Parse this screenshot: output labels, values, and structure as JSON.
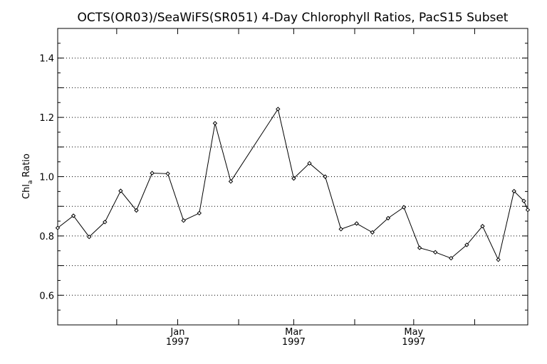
{
  "chart_data": {
    "type": "line",
    "title": "OCTS(OR03)/SeaWiFS(SR051) 4-Day Chlorophyll Ratios, PacS15 Subset",
    "ylabel": "Chl",
    "ylabel_subscript": "a",
    "ylabel_suffix": " Ratio",
    "ylim": [
      0.5,
      1.5
    ],
    "yticks": [
      0.6,
      0.8,
      1.0,
      1.2,
      1.4
    ],
    "ytick_labels": [
      "0.6",
      "0.8",
      "1.0",
      "1.2",
      "1.4"
    ],
    "grid": "horizontal dotted at every 0.1",
    "xlim": [
      "1996-11-01",
      "1997-06-28"
    ],
    "xticks": [
      {
        "date": "1996-12-01",
        "label": "",
        "year": ""
      },
      {
        "date": "1997-01-01",
        "label": "Jan",
        "year": "1997"
      },
      {
        "date": "1997-02-01",
        "label": "",
        "year": ""
      },
      {
        "date": "1997-03-01",
        "label": "Mar",
        "year": "1997"
      },
      {
        "date": "1997-04-01",
        "label": "",
        "year": ""
      },
      {
        "date": "1997-05-01",
        "label": "May",
        "year": "1997"
      },
      {
        "date": "1997-06-01",
        "label": "",
        "year": ""
      }
    ],
    "series": [
      {
        "points": [
          {
            "x": "1996-11-01",
            "y": 0.827
          },
          {
            "x": "1996-11-09",
            "y": 0.868
          },
          {
            "x": "1996-11-17",
            "y": 0.797
          },
          {
            "x": "1996-11-25",
            "y": 0.847
          },
          {
            "x": "1996-12-03",
            "y": 0.952
          },
          {
            "x": "1996-12-11",
            "y": 0.886
          },
          {
            "x": "1996-12-19",
            "y": 1.012
          },
          {
            "x": "1996-12-27",
            "y": 1.01
          },
          {
            "x": "1997-01-04",
            "y": 0.852
          },
          {
            "x": "1997-01-12",
            "y": 0.877
          },
          {
            "x": "1997-01-20",
            "y": 1.18
          },
          {
            "x": "1997-01-28",
            "y": 0.984
          },
          {
            "x": "1997-02-21",
            "y": 1.228
          },
          {
            "x": "1997-03-01",
            "y": 0.994
          },
          {
            "x": "1997-03-09",
            "y": 1.045
          },
          {
            "x": "1997-03-17",
            "y": 1.0
          },
          {
            "x": "1997-03-25",
            "y": 0.823
          },
          {
            "x": "1997-04-02",
            "y": 0.842
          },
          {
            "x": "1997-04-10",
            "y": 0.812
          },
          {
            "x": "1997-04-18",
            "y": 0.86
          },
          {
            "x": "1997-04-26",
            "y": 0.897
          },
          {
            "x": "1997-05-04",
            "y": 0.76
          },
          {
            "x": "1997-05-12",
            "y": 0.745
          },
          {
            "x": "1997-05-20",
            "y": 0.725
          },
          {
            "x": "1997-05-28",
            "y": 0.77
          },
          {
            "x": "1997-06-05",
            "y": 0.833
          },
          {
            "x": "1997-06-13",
            "y": 0.72
          },
          {
            "x": "1997-06-21",
            "y": 0.951
          },
          {
            "x": "1997-06-26",
            "y": 0.918
          },
          {
            "x": "1997-06-28",
            "y": 0.888
          }
        ]
      }
    ]
  }
}
